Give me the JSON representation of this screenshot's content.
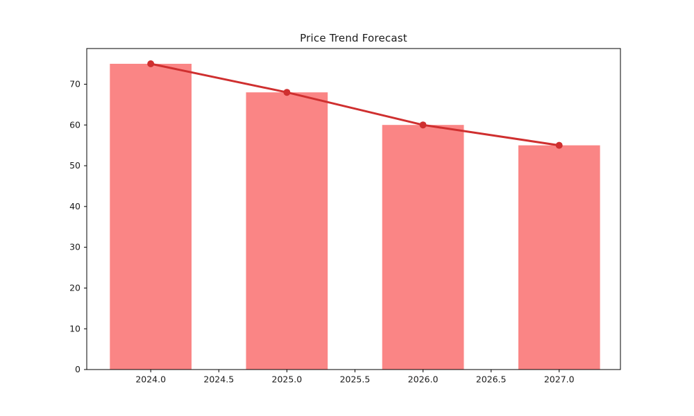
{
  "figure": {
    "background": "#ffffff"
  },
  "chart_data": {
    "type": "bar",
    "title": "Price Trend Forecast",
    "xlabel": "",
    "ylabel": "",
    "categories": [
      2024,
      2025,
      2026,
      2027
    ],
    "series": [
      {
        "name": "price-bars",
        "type": "bar",
        "values": [
          75,
          68,
          60,
          55
        ],
        "color": "#fa8585",
        "bar_width": 0.6
      },
      {
        "name": "trend-line",
        "type": "line",
        "values": [
          75,
          68,
          60,
          55
        ],
        "color": "#cf2f2f",
        "marker": "circle"
      }
    ],
    "xlim": [
      2023.53,
      2027.45
    ],
    "ylim": [
      0,
      78.75
    ],
    "x_ticks": [
      2024.0,
      2024.5,
      2025.0,
      2025.5,
      2026.0,
      2026.5,
      2027.0
    ],
    "x_tick_labels": [
      "2024.0",
      "2024.5",
      "2025.0",
      "2025.5",
      "2026.0",
      "2026.5",
      "2027.0"
    ],
    "y_ticks": [
      0,
      10,
      20,
      30,
      40,
      50,
      60,
      70
    ],
    "y_tick_labels": [
      "0",
      "10",
      "20",
      "30",
      "40",
      "50",
      "60",
      "70"
    ],
    "grid": false,
    "legend_visible": false,
    "axis_color": "#000000",
    "tick_label_color": "#1a1a1a"
  }
}
